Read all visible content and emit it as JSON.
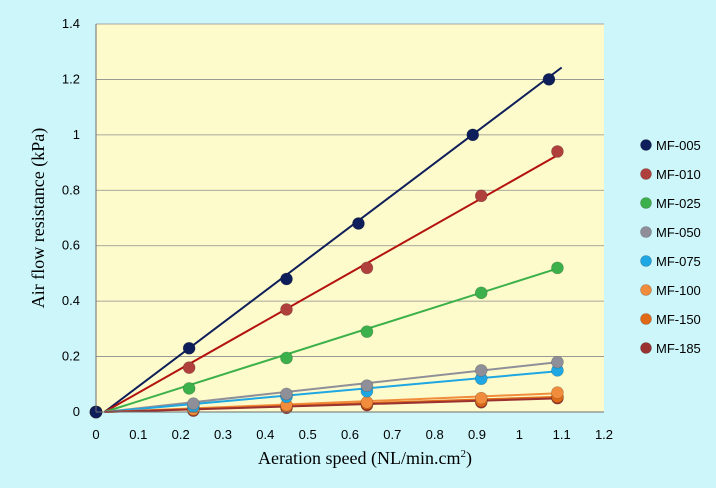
{
  "colors": {
    "background": "#ccf6fa",
    "plot_area": "#fdfbcb",
    "gridline": "#8c8c8c"
  },
  "chart_data": {
    "type": "scatter",
    "title": "",
    "xlabel": "Aeration speed (NL/min.cm",
    "xlabel_superscript": "2",
    "xlabel_suffix": ")",
    "ylabel": "Air flow resistance (kPa)",
    "xlim": [
      0,
      1.2
    ],
    "ylim": [
      0,
      1.4
    ],
    "x_ticks": [
      "0",
      "0.1",
      "0.2",
      "0.3",
      "0.4",
      "0.5",
      "0.6",
      "0.7",
      "0.8",
      "0.9",
      "1",
      "1.1",
      "1.2"
    ],
    "y_ticks": [
      "0",
      "0.2",
      "0.4",
      "0.6",
      "0.8",
      "1",
      "1.2",
      "1.4"
    ],
    "grid": "horizontal",
    "legend_position": "right",
    "trendlines": "linear",
    "series": [
      {
        "name": "MF-005",
        "color": "#0e1e5a",
        "line_color": "#0e1e5a",
        "x": [
          0,
          0.22,
          0.45,
          0.62,
          0.89,
          1.07
        ],
        "y": [
          0,
          0.23,
          0.48,
          0.68,
          1.0,
          1.2
        ],
        "slope": 1.13
      },
      {
        "name": "MF-010",
        "color": "#b0403c",
        "line_color": "#b3120e",
        "x": [
          0,
          0.22,
          0.45,
          0.64,
          0.91,
          1.09
        ],
        "y": [
          0,
          0.16,
          0.37,
          0.52,
          0.78,
          0.94
        ],
        "slope": 0.85
      },
      {
        "name": "MF-025",
        "color": "#3cb04a",
        "line_color": "#3cb04a",
        "x": [
          0,
          0.22,
          0.45,
          0.64,
          0.91,
          1.09
        ],
        "y": [
          0,
          0.085,
          0.195,
          0.29,
          0.43,
          0.52
        ],
        "slope": 0.475
      },
      {
        "name": "MF-050",
        "color": "#8f8f9a",
        "line_color": "#8f8f9a",
        "x": [
          0,
          0.23,
          0.45,
          0.64,
          0.91,
          1.09
        ],
        "y": [
          0,
          0.03,
          0.065,
          0.095,
          0.15,
          0.18
        ],
        "slope": 0.165
      },
      {
        "name": "MF-075",
        "color": "#1ea7e2",
        "line_color": "#1ea7e2",
        "x": [
          0,
          0.23,
          0.45,
          0.64,
          0.91,
          1.09
        ],
        "y": [
          0,
          0.02,
          0.055,
          0.075,
          0.12,
          0.15
        ],
        "slope": 0.135
      },
      {
        "name": "MF-100",
        "color": "#f08c3c",
        "line_color": "#f08c3c",
        "x": [
          0,
          0.23,
          0.45,
          0.64,
          0.91,
          1.09
        ],
        "y": [
          0,
          0.01,
          0.025,
          0.035,
          0.05,
          0.07
        ],
        "slope": 0.062
      },
      {
        "name": "MF-150",
        "color": "#e06a18",
        "line_color": "#e06a18",
        "x": [
          0,
          0.23,
          0.45,
          0.64,
          0.91,
          1.09
        ],
        "y": [
          0,
          0.008,
          0.02,
          0.03,
          0.04,
          0.055
        ],
        "slope": 0.05
      },
      {
        "name": "MF-185",
        "color": "#9a3232",
        "line_color": "#9a3232",
        "x": [
          0,
          0.23,
          0.45,
          0.64,
          0.91,
          1.09
        ],
        "y": [
          0,
          0.005,
          0.015,
          0.025,
          0.035,
          0.05
        ],
        "slope": 0.045
      }
    ]
  }
}
